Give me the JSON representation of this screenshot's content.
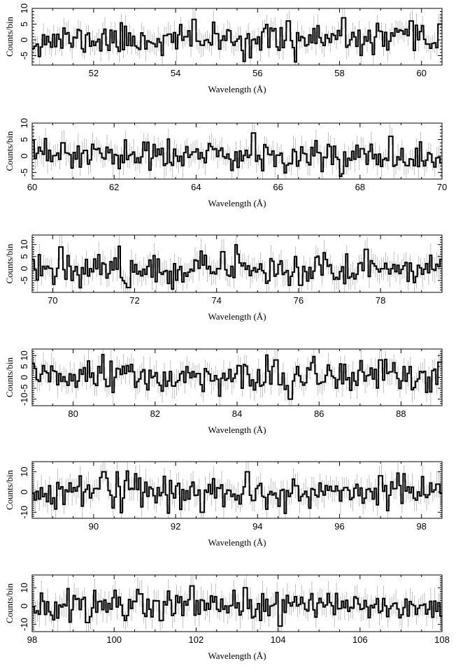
{
  "figure": {
    "background": "#ffffff",
    "colors": {
      "step_line": "#000000",
      "error_bar": "#b0b0b0",
      "frame": "#000000"
    }
  },
  "chart_data": [
    {
      "type": "line",
      "style": "step-histogram-with-error-bars",
      "xlabel": "Wavelength (Å)",
      "ylabel": "Counts/bin",
      "xlim": [
        50.5,
        60.5
      ],
      "ylim": [
        -8,
        10
      ],
      "xticks": [
        52,
        54,
        56,
        58,
        60
      ],
      "yticks": [
        -5,
        0,
        5,
        10
      ],
      "bin_width": 0.05,
      "seed": 11,
      "noise_sigma": 2.4,
      "err": 3.2,
      "features": [
        [
          54.45,
          6.5
        ],
        [
          56.75,
          6
        ],
        [
          56.93,
          -7
        ],
        [
          58.1,
          7
        ],
        [
          59.75,
          6
        ],
        [
          60.45,
          5
        ]
      ]
    },
    {
      "type": "line",
      "style": "step-histogram-with-error-bars",
      "xlabel": "Wavelength (Å)",
      "ylabel": "Counts/bin",
      "xlim": [
        60,
        70
      ],
      "ylim": [
        -7,
        10
      ],
      "xticks": [
        60,
        62,
        64,
        66,
        68,
        70
      ],
      "yticks": [
        -5,
        0,
        5,
        10
      ],
      "bin_width": 0.05,
      "seed": 23,
      "noise_sigma": 2.4,
      "err": 3.2,
      "features": [
        [
          65.4,
          7
        ],
        [
          68.75,
          6
        ],
        [
          60.75,
          4
        ]
      ]
    },
    {
      "type": "line",
      "style": "step-histogram-with-error-bars",
      "xlabel": "Wavelength (Å)",
      "ylabel": "Counts/bin",
      "xlim": [
        69.5,
        79.5
      ],
      "ylim": [
        -10,
        14
      ],
      "xticks": [
        70,
        72,
        74,
        76,
        78
      ],
      "yticks": [
        -5,
        0,
        5,
        10
      ],
      "bin_width": 0.05,
      "seed": 37,
      "noise_sigma": 3.2,
      "err": 4.5,
      "features": [
        [
          70.2,
          9
        ],
        [
          71.85,
          -8
        ],
        [
          74.15,
          7
        ],
        [
          77.65,
          8
        ],
        [
          76.05,
          -7
        ]
      ]
    },
    {
      "type": "line",
      "style": "step-histogram-with-error-bars",
      "xlabel": "Wavelength (Å)",
      "ylabel": "Counts/bin",
      "xlim": [
        79,
        89
      ],
      "ylim": [
        -13,
        13
      ],
      "xticks": [
        80,
        82,
        84,
        86,
        88
      ],
      "yticks": [
        -10,
        -5,
        0,
        5,
        10
      ],
      "bin_width": 0.05,
      "seed": 51,
      "noise_sigma": 3.6,
      "err": 5,
      "features": [
        [
          84.95,
          8
        ],
        [
          85.3,
          -10
        ],
        [
          87.5,
          8
        ],
        [
          88.95,
          7
        ]
      ]
    },
    {
      "type": "line",
      "style": "step-histogram-with-error-bars",
      "xlabel": "Wavelength (Å)",
      "ylabel": "Counts/bin",
      "xlim": [
        88.5,
        98.5
      ],
      "ylim": [
        -13,
        15
      ],
      "xticks": [
        90,
        92,
        94,
        96,
        98
      ],
      "yticks": [
        -10,
        0,
        10
      ],
      "bin_width": 0.05,
      "seed": 67,
      "noise_sigma": 3.9,
      "err": 5.5,
      "features": [
        [
          90.25,
          10
        ],
        [
          93.75,
          10
        ],
        [
          92.65,
          -10
        ],
        [
          97.0,
          8
        ]
      ]
    },
    {
      "type": "line",
      "style": "step-histogram-with-error-bars",
      "xlabel": "Wavelength (Å)",
      "ylabel": "Counts/bin",
      "xlim": [
        98,
        108
      ],
      "ylim": [
        -14,
        17
      ],
      "xticks": [
        98,
        100,
        102,
        104,
        106,
        108
      ],
      "yticks": [
        -10,
        0,
        10
      ],
      "bin_width": 0.05,
      "seed": 83,
      "noise_sigma": 4.2,
      "err": 6,
      "features": [
        [
          101.9,
          11
        ],
        [
          103.2,
          10
        ],
        [
          104.05,
          -11
        ],
        [
          99.35,
          -9
        ]
      ]
    }
  ]
}
